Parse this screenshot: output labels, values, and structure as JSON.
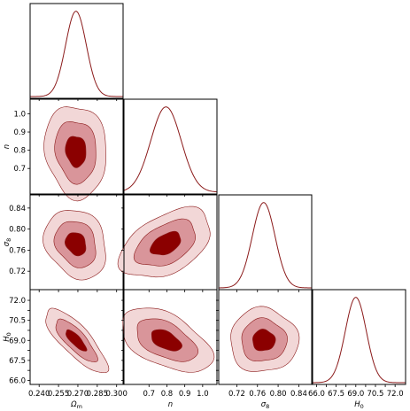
{
  "colors": {
    "line": "#8b1a1a",
    "contour_outer": "#f2d7d7",
    "contour_mid": "#d9959a",
    "contour_inner": "#8b0000"
  },
  "chart_data": {
    "type": "corner",
    "title": "",
    "parameters": [
      {
        "id": "Om",
        "label": "Ωm",
        "symbol": "Ω",
        "subscript": "m",
        "range": [
          0.233,
          0.305
        ],
        "mean": 0.2685,
        "sigma": 0.008,
        "ticks": [
          0.24,
          0.255,
          0.27,
          0.285,
          0.3
        ],
        "tick_labels": [
          "0.240",
          "0.255",
          "0.270",
          "0.285",
          "0.300"
        ]
      },
      {
        "id": "n",
        "label": "n",
        "symbol": "n",
        "subscript": "",
        "range": [
          0.56,
          1.08
        ],
        "mean": 0.795,
        "sigma": 0.085,
        "ticks": [
          0.7,
          0.8,
          0.9,
          1.0
        ],
        "tick_labels": [
          "0.7",
          "0.8",
          "0.9",
          "1.0"
        ]
      },
      {
        "id": "sigma8",
        "label": "σ8",
        "symbol": "σ",
        "subscript": "8",
        "range": [
          0.685,
          0.865
        ],
        "mean": 0.772,
        "sigma": 0.022,
        "ticks": [
          0.72,
          0.76,
          0.8,
          0.84
        ],
        "tick_labels": [
          "0.72",
          "0.76",
          "0.80",
          "0.84"
        ]
      },
      {
        "id": "H0",
        "label": "H0",
        "symbol": "H",
        "subscript": "0",
        "range": [
          65.7,
          72.8
        ],
        "mean": 69.0,
        "sigma": 0.8,
        "ticks": [
          66.0,
          66.75,
          67.5,
          68.25,
          69.0,
          69.75,
          70.5,
          71.25,
          72.0
        ],
        "tick_labels": [
          "66.0",
          "",
          "67.5",
          "",
          "69.0",
          "",
          "70.5",
          "",
          "72.0"
        ],
        "tick_labels_visible": [
          "66.0",
          "67.5",
          "69.0",
          "70.5",
          "72.0"
        ]
      }
    ],
    "correlations": [
      {
        "row": "n",
        "col": "Om",
        "rho": -0.1
      },
      {
        "row": "sigma8",
        "col": "Om",
        "rho": -0.2
      },
      {
        "row": "sigma8",
        "col": "n",
        "rho": 0.45
      },
      {
        "row": "H0",
        "col": "Om",
        "rho": -0.8
      },
      {
        "row": "H0",
        "col": "n",
        "rho": -0.5
      },
      {
        "row": "H0",
        "col": "sigma8",
        "rho": 0.0
      }
    ],
    "contour_levels_sigma": [
      1,
      2,
      3
    ],
    "grid": false
  }
}
